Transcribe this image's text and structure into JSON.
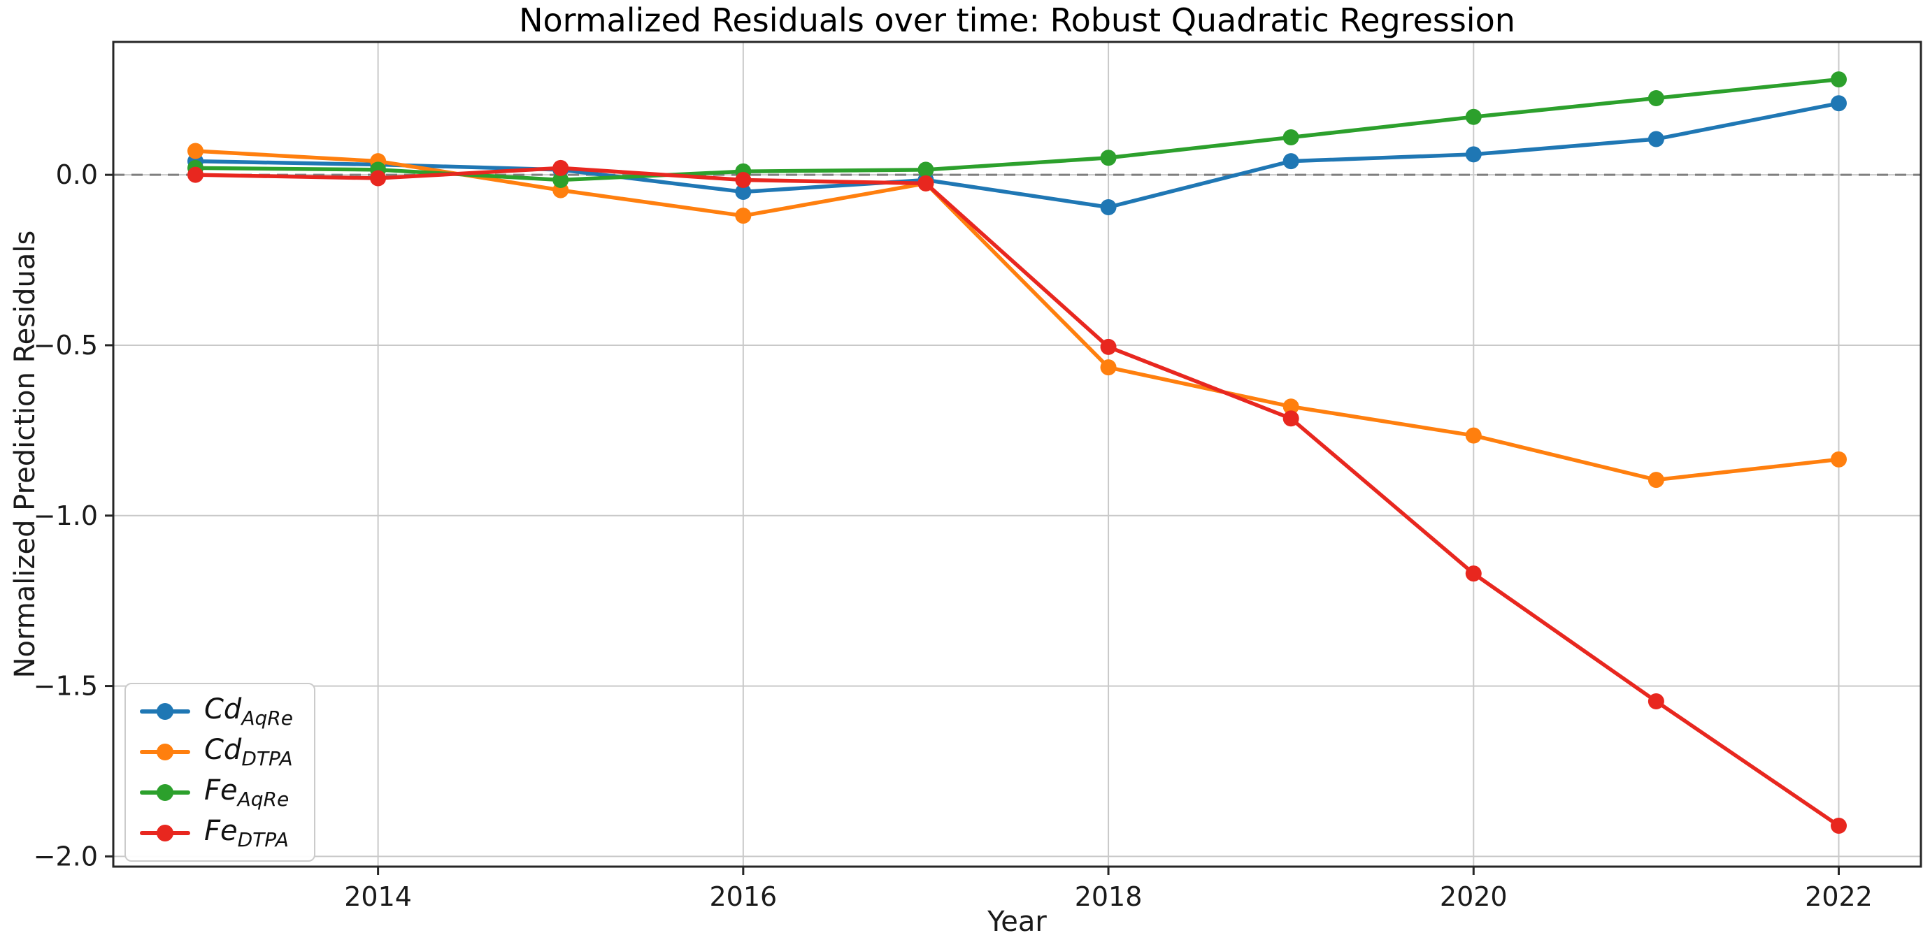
{
  "title": "Normalized Residuals over time: Robust Quadratic Regression",
  "chart_data": {
    "type": "line",
    "title": "Normalized Residuals over time: Robust Quadratic Regression",
    "xlabel": "Year",
    "ylabel": "Normalized Prediction Residuals",
    "x": [
      2013,
      2014,
      2015,
      2016,
      2017,
      2018,
      2019,
      2020,
      2021,
      2022
    ],
    "xticks": [
      2014,
      2016,
      2018,
      2020,
      2022
    ],
    "yticks": [
      0.0,
      -0.5,
      -1.0,
      -1.5,
      -2.0
    ],
    "ytick_labels": [
      "0.0",
      "−0.5",
      "−1.0",
      "−1.5",
      "−2.0"
    ],
    "xlim": [
      2012.55,
      2022.45
    ],
    "ylim": [
      -2.03,
      0.39
    ],
    "grid": true,
    "grid_color": "#c9c9c9",
    "spine_color": "#262626",
    "zero_line": {
      "y": 0,
      "style": "dashed",
      "color": "#7f7f7f"
    },
    "legend_position": "lower left",
    "series": [
      {
        "id": "cd-aqre",
        "label_base": "Cd",
        "label_sub": "AqRe",
        "color": "#1f77b4",
        "values": [
          0.04,
          0.03,
          0.015,
          -0.05,
          -0.015,
          -0.095,
          0.04,
          0.06,
          0.105,
          0.21
        ]
      },
      {
        "id": "cd-dtpa",
        "label_base": "Cd",
        "label_sub": "DTPA",
        "color": "#ff7f0e",
        "values": [
          0.07,
          0.04,
          -0.045,
          -0.12,
          -0.025,
          -0.565,
          -0.68,
          -0.765,
          -0.895,
          -0.835
        ]
      },
      {
        "id": "fe-aqre",
        "label_base": "Fe",
        "label_sub": "AqRe",
        "color": "#2ca02c",
        "values": [
          0.02,
          0.015,
          -0.015,
          0.01,
          0.015,
          0.05,
          0.11,
          0.17,
          0.225,
          0.28
        ]
      },
      {
        "id": "fe-dtpa",
        "label_base": "Fe",
        "label_sub": "DTPA",
        "color": "#e8271f",
        "values": [
          0.0,
          -0.01,
          0.02,
          -0.015,
          -0.025,
          -0.505,
          -0.715,
          -1.17,
          -1.545,
          -1.91
        ]
      }
    ]
  }
}
